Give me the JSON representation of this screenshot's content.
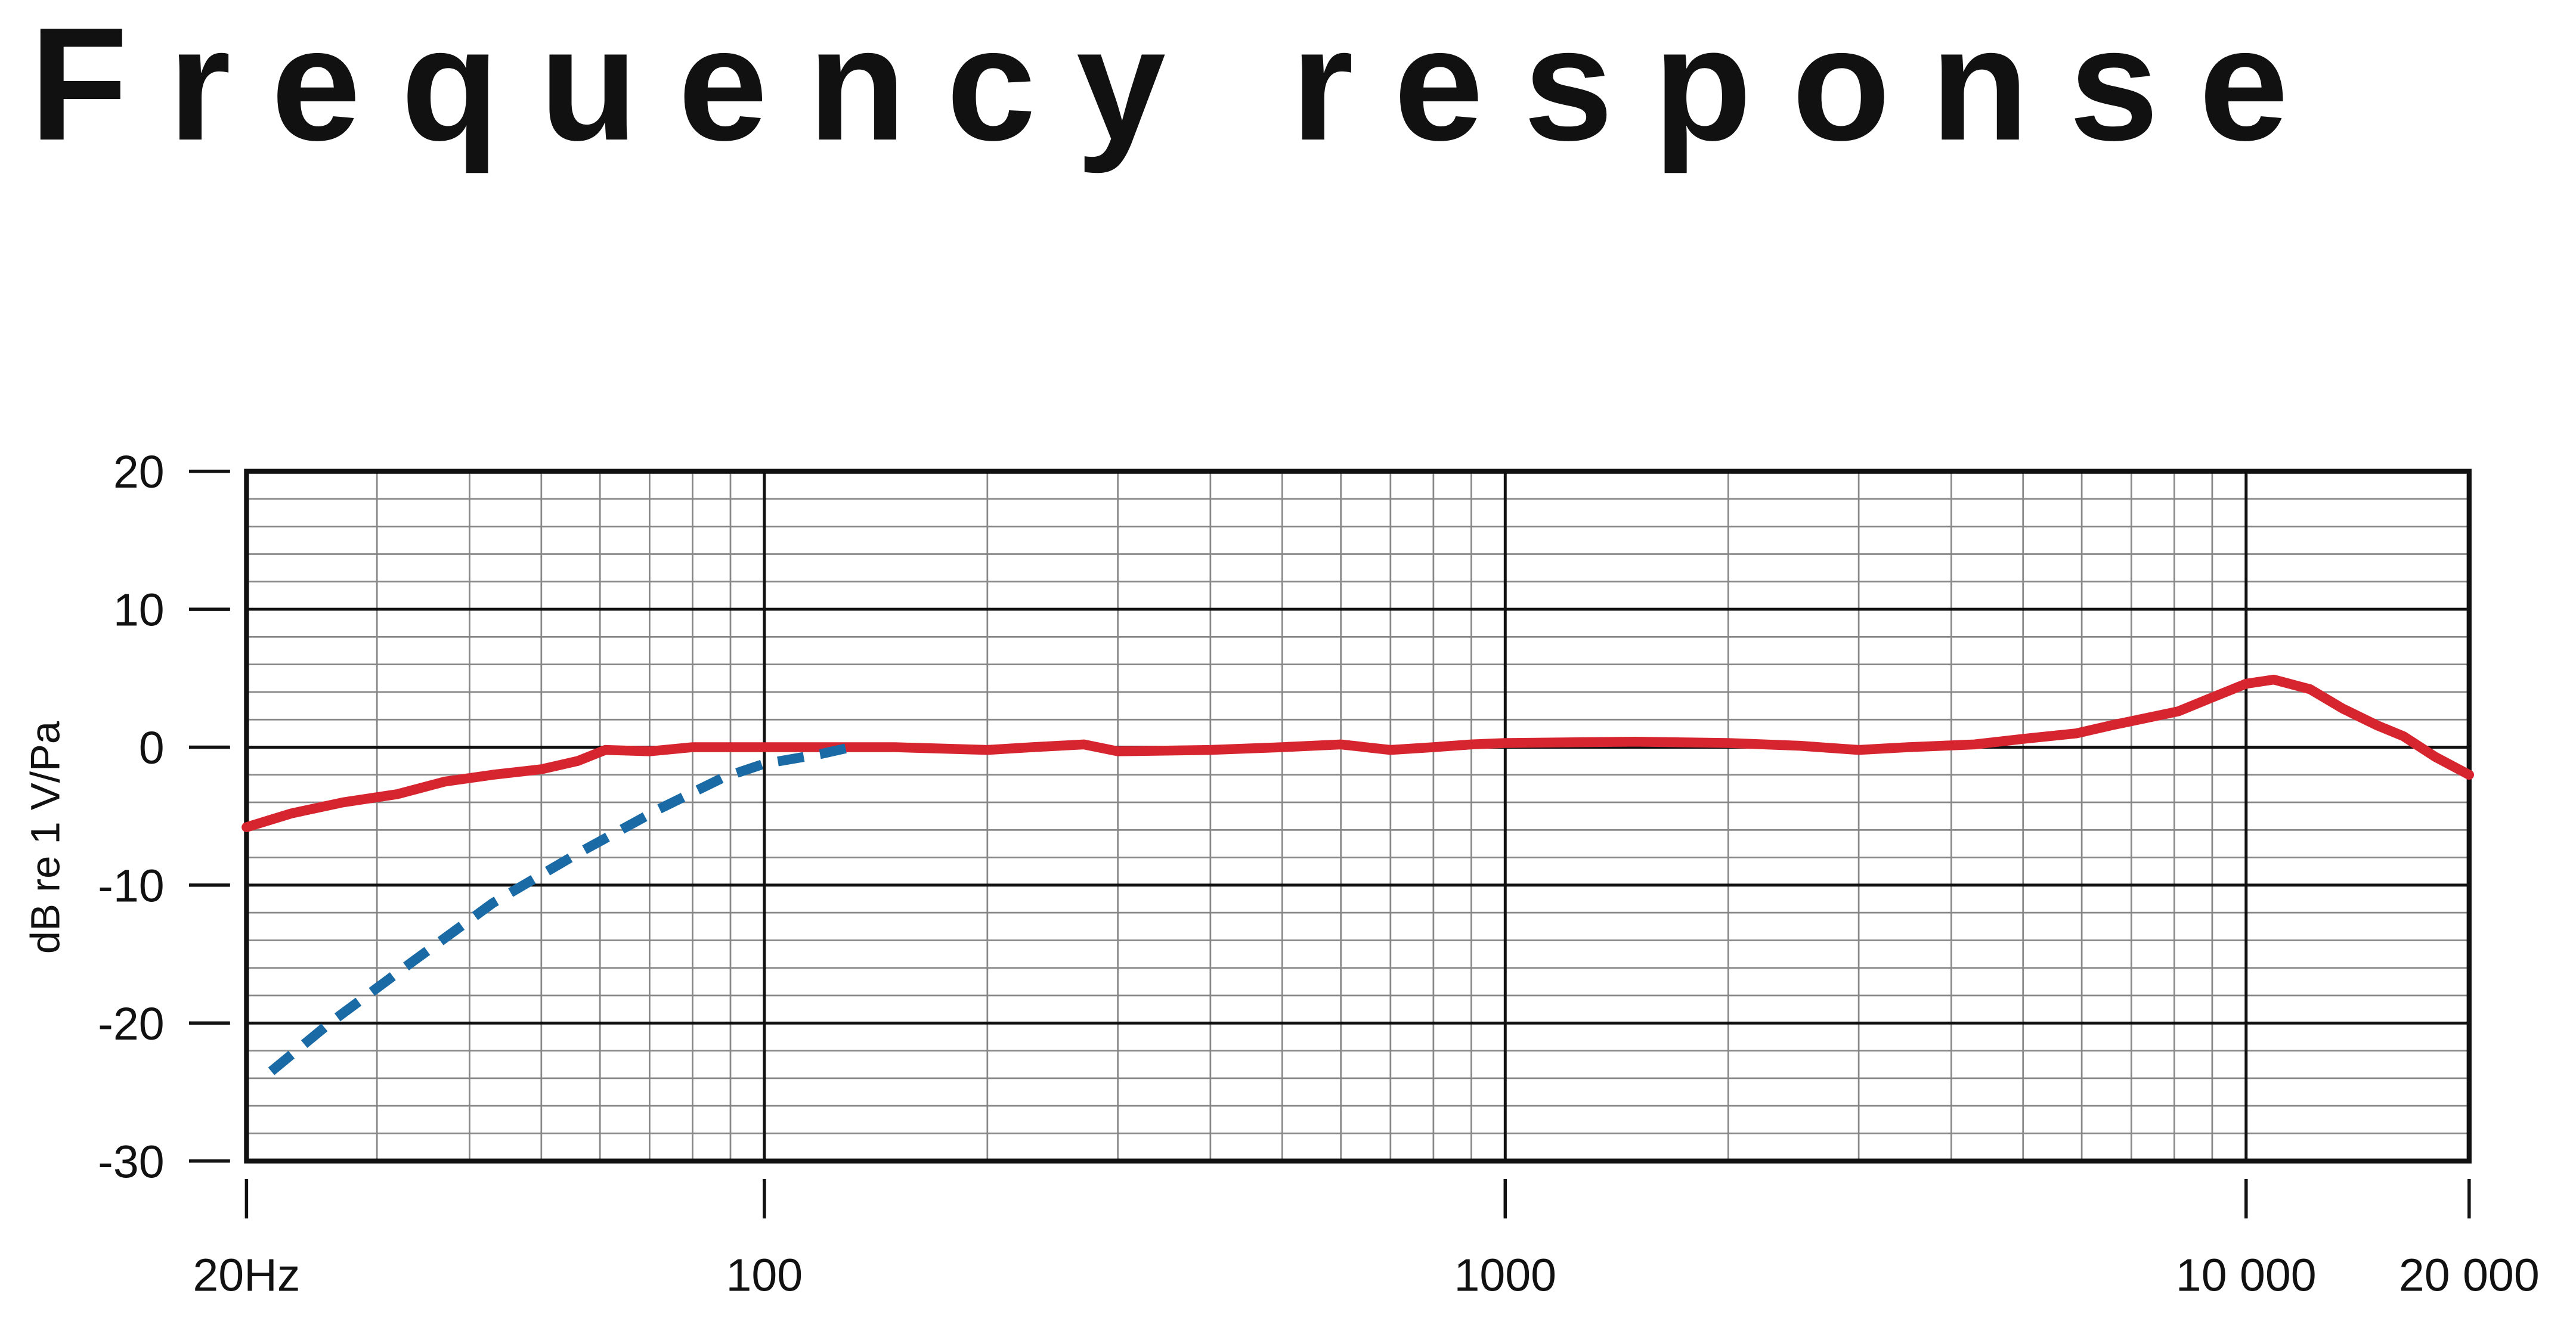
{
  "chart_data": {
    "type": "line",
    "title": "Frequency response",
    "y_label": "dB re 1 V/Pa",
    "log_x": true,
    "grid": true,
    "xlim": [
      20,
      20000
    ],
    "ylim": [
      -30,
      20
    ],
    "xticks": [
      {
        "value": 20,
        "label": "20Hz"
      },
      100,
      1000,
      {
        "value": 10000,
        "label": "10 000"
      },
      {
        "value": 20000,
        "label": "20 000"
      }
    ],
    "yticks": [
      20,
      10,
      0,
      -10,
      -20,
      -30
    ],
    "series": [
      {
        "color": "#d7252f",
        "dashed": false,
        "x": [
          20,
          23,
          27,
          32,
          37,
          43,
          50,
          56,
          61,
          70,
          80,
          100,
          150,
          200,
          230,
          270,
          300,
          400,
          500,
          600,
          700,
          800,
          900,
          1000,
          1500,
          2000,
          2500,
          3000,
          3500,
          4300,
          5000,
          5900,
          6600,
          8100,
          8900,
          10000,
          10900,
          12200,
          13500,
          15000,
          16300,
          18000,
          20000
        ],
        "values": [
          -5.8,
          -4.8,
          -4,
          -3.4,
          -2.5,
          -2,
          -1.6,
          -1,
          -0.2,
          -0.3,
          0,
          0,
          0,
          -0.2,
          0,
          0.2,
          -0.3,
          -0.2,
          0,
          0.2,
          -0.2,
          0,
          0.2,
          0.3,
          0.4,
          0.3,
          0.1,
          -0.2,
          0,
          0.2,
          0.6,
          1,
          1.6,
          2.6,
          3.5,
          4.6,
          4.9,
          4.2,
          2.8,
          1.6,
          0.8,
          -0.7,
          -2
        ]
      },
      {
        "color": "#1a6aa5",
        "dashed": true,
        "x": [
          21.6,
          25.9,
          33.6,
          43,
          56,
          72,
          88,
          100,
          119,
          131
        ],
        "values": [
          -23.5,
          -20,
          -15.5,
          -11.3,
          -7.7,
          -4.5,
          -2.2,
          -1.2,
          -0.5,
          0
        ]
      }
    ]
  }
}
